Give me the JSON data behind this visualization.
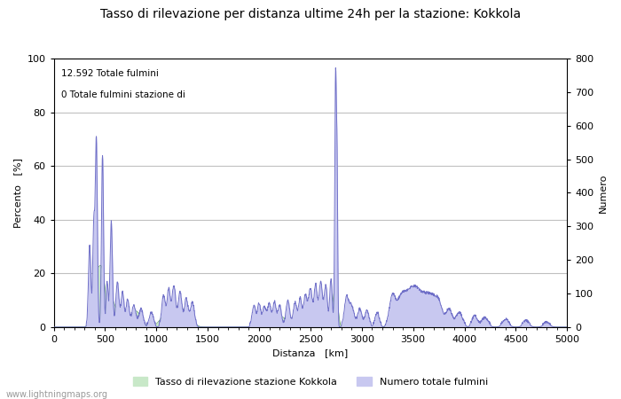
{
  "title": "Tasso di rilevazione per distanza ultime 24h per la stazione: Kokkola",
  "xlabel": "Distanza   [km]",
  "ylabel_left": "Percento   [%]",
  "ylabel_right": "Numero",
  "annotation_line1": "12.592 Totale fulmini",
  "annotation_line2": "0 Totale fulmini stazione di",
  "xlim": [
    0,
    5000
  ],
  "ylim_left": [
    0,
    100
  ],
  "ylim_right": [
    0,
    800
  ],
  "xticks": [
    0,
    500,
    1000,
    1500,
    2000,
    2500,
    3000,
    3500,
    4000,
    4500,
    5000
  ],
  "yticks_left": [
    0,
    20,
    40,
    60,
    80,
    100
  ],
  "yticks_right": [
    0,
    100,
    200,
    300,
    400,
    500,
    600,
    700,
    800
  ],
  "legend_label_green": "Tasso di rilevazione stazione Kokkola",
  "legend_label_blue": "Numero totale fulmini",
  "watermark": "www.lightningmaps.org",
  "fill_green_color": "#c8e8c8",
  "fill_blue_color": "#c8c8f0",
  "line_color": "#7070c8",
  "bg_color": "#ffffff",
  "plot_bg_color": "#ffffff",
  "grid_color": "#c0c0c0",
  "title_fontsize": 10,
  "axis_fontsize": 8,
  "tick_fontsize": 8
}
